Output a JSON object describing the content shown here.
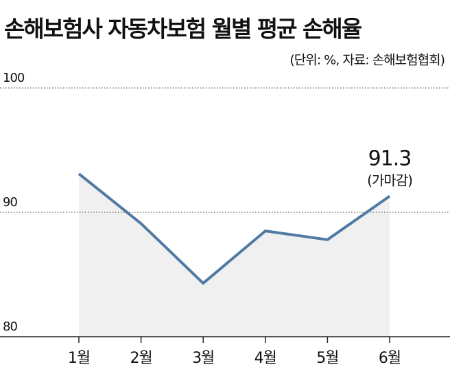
{
  "chart_data": {
    "type": "line",
    "title": "손해보험사 자동차보험 월별 평균 손해율",
    "subtitle": "(단위: %, 자료: 손해보험협회)",
    "categories": [
      "1월",
      "2월",
      "3월",
      "4월",
      "5월",
      "6월"
    ],
    "values": [
      93.1,
      89.1,
      84.3,
      88.5,
      87.8,
      91.3
    ],
    "color": "#4f7aa3",
    "area_color": "#f0f0f0",
    "annotation": "(가마감)",
    "ylim": [
      80,
      100
    ],
    "yticks": [
      80,
      90,
      100
    ],
    "grid": true
  }
}
